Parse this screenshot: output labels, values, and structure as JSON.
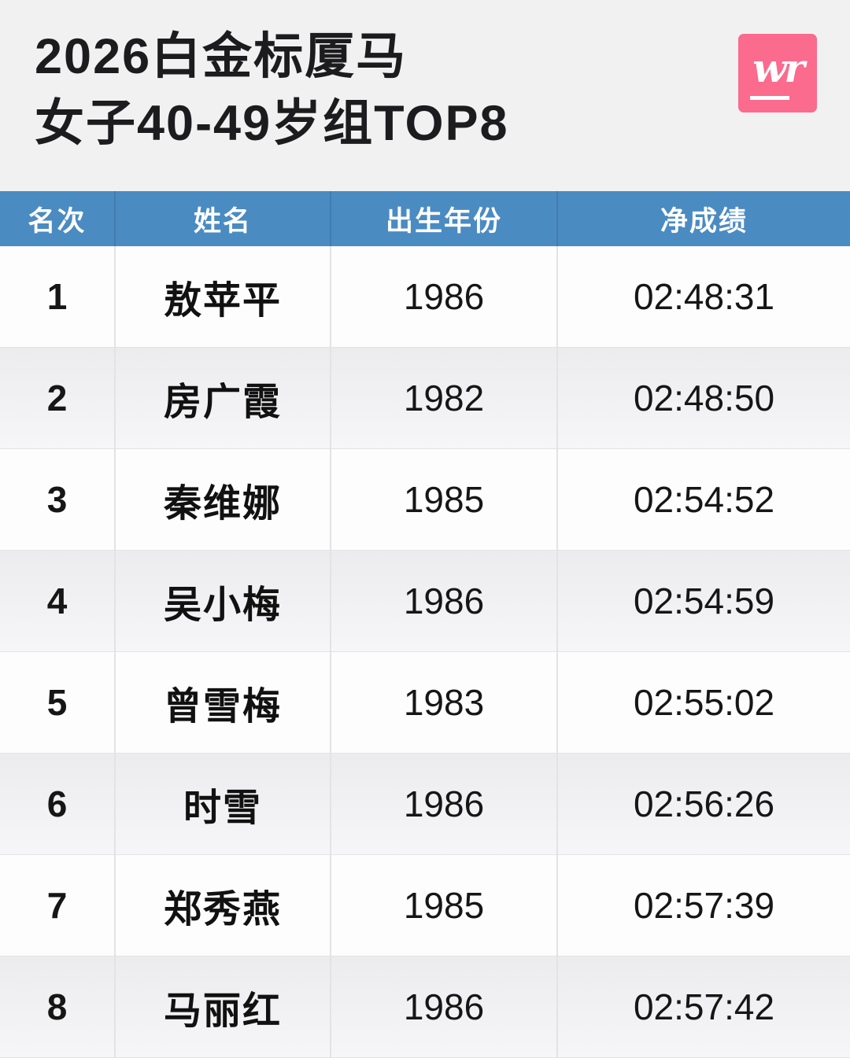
{
  "title": {
    "line1": "2026白金标厦马",
    "line2": "女子40-49岁组TOP8"
  },
  "logo": {
    "text": "wr"
  },
  "colors": {
    "page_background": "#f1f1f2",
    "header_blue": "#4a8bc2",
    "logo_pink": "#fa6b8d",
    "row_white": "#fdfdfe",
    "row_alt": "#efeff1",
    "divider": "#e3e3e6",
    "header_text": "#ffffff",
    "text": "#1a1a1a"
  },
  "chart_data": {
    "type": "table",
    "title": "2026白金标厦马",
    "subtitle": "女子40-49岁组TOP8",
    "columns": [
      "名次",
      "姓名",
      "出生年份",
      "净成绩"
    ],
    "rows": [
      [
        "1",
        "敖苹平",
        "1986",
        "02:48:31"
      ],
      [
        "2",
        "房广霞",
        "1982",
        "02:48:50"
      ],
      [
        "3",
        "秦维娜",
        "1985",
        "02:54:52"
      ],
      [
        "4",
        "吴小梅",
        "1986",
        "02:54:59"
      ],
      [
        "5",
        "曾雪梅",
        "1983",
        "02:55:02"
      ],
      [
        "6",
        "时雪",
        "1986",
        "02:56:26"
      ],
      [
        "7",
        "郑秀燕",
        "1985",
        "02:57:39"
      ],
      [
        "8",
        "马丽红",
        "1986",
        "02:57:42"
      ]
    ]
  }
}
